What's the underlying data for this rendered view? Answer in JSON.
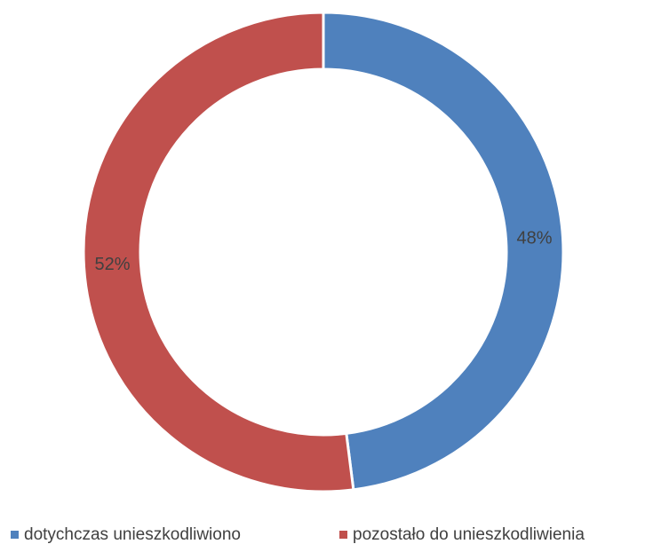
{
  "chart_data": {
    "type": "donut",
    "categories": [
      "dotychczas unieszkodliwiono",
      "pozostało do unieszkodliwienia"
    ],
    "values": [
      48,
      52
    ],
    "value_labels": [
      "48%",
      "52%"
    ],
    "colors": [
      "#4f81bd",
      "#c0504d"
    ],
    "legend": "bottom"
  }
}
